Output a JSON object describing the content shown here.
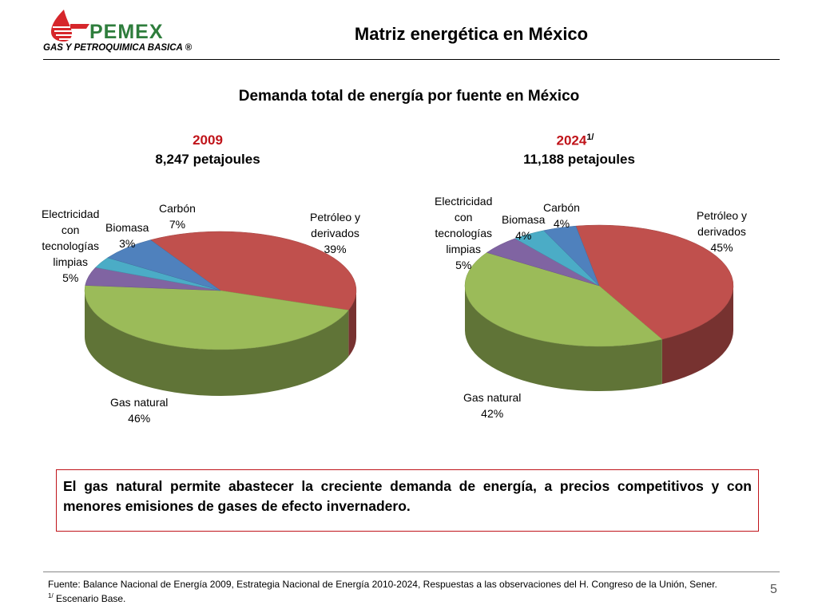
{
  "logo": {
    "word": "PEMEX",
    "subtitle": "GAS Y PETROQUIMICA BASICA ®",
    "colors": {
      "red": "#d6262b",
      "green": "#2e7d3c"
    }
  },
  "header": {
    "title": "Matriz energética en México"
  },
  "subtitle": "Demanda total de energía por fuente en México",
  "chart_data": [
    {
      "type": "pie",
      "title": "2009",
      "total": "8,247 petajoules",
      "slices": [
        {
          "name": "Petróleo y derivados",
          "value": 39,
          "color": "#c0504d"
        },
        {
          "name": "Gas natural",
          "value": 46,
          "color": "#9bbb59"
        },
        {
          "name": "Electricidad con tecnologías limpias",
          "value": 5,
          "color": "#8064a2"
        },
        {
          "name": "Biomasa",
          "value": 3,
          "color": "#4bacc6"
        },
        {
          "name": "Carbón",
          "value": 7,
          "color": "#4f81bd"
        }
      ]
    },
    {
      "type": "pie",
      "title": "2024",
      "title_sup": "1/",
      "total": "11,188 petajoules",
      "slices": [
        {
          "name": "Petróleo y derivados",
          "value": 45,
          "color": "#c0504d"
        },
        {
          "name": "Gas natural",
          "value": 42,
          "color": "#9bbb59"
        },
        {
          "name": "Electricidad con tecnologías limpias",
          "value": 5,
          "color": "#8064a2"
        },
        {
          "name": "Biomasa",
          "value": 4,
          "color": "#4bacc6"
        },
        {
          "name": "Carbón",
          "value": 4,
          "color": "#4f81bd"
        }
      ]
    }
  ],
  "labels": {
    "c1": {
      "petroleo": [
        "Petróleo y",
        "derivados",
        "39%"
      ],
      "gas": [
        "Gas natural",
        "46%"
      ],
      "electricidad": [
        "Electricidad",
        "con",
        "tecnologías",
        "limpias",
        "5%"
      ],
      "biomasa": [
        "Biomasa",
        "3%"
      ],
      "carbon": [
        "Carbón",
        "7%"
      ]
    },
    "c2": {
      "petroleo": [
        "Petróleo y",
        "derivados",
        "45%"
      ],
      "gas": [
        "Gas natural",
        "42%"
      ],
      "electricidad": [
        "Electricidad",
        "con",
        "tecnologías",
        "limpias",
        "5%"
      ],
      "biomasa": [
        "Biomasa",
        "4%"
      ],
      "carbon": [
        "Carbón",
        "4%"
      ]
    }
  },
  "callout": "El gas natural permite abastecer la creciente demanda de energía, a precios competitivos y con menores emisiones de gases de efecto invernadero.",
  "footer": {
    "source": "Fuente: Balance Nacional de Energía 2009, Estrategia Nacional de Energía 2010-2024, Respuestas a las observaciones del H. Congreso de la Unión, Sener.",
    "note_sup": "1/",
    "note": " Escenario Base."
  },
  "page_number": "5"
}
